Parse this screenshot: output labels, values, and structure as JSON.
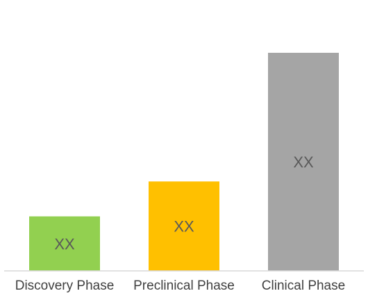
{
  "chart_data": {
    "type": "bar",
    "title": "",
    "xlabel": "",
    "ylabel": "",
    "grid": false,
    "legend": "none",
    "categories": [
      "Discovery Phase",
      "Preclinical Phase",
      "Clinical Phase"
    ],
    "values": [
      25,
      41,
      100
    ],
    "value_unit": "percent of tallest bar",
    "ylim": [
      0,
      100
    ],
    "data_labels": [
      "XX",
      "XX",
      "XX"
    ],
    "colors": [
      "#92d050",
      "#ffc000",
      "#a5a5a5"
    ],
    "axis_color": "#d9d9d9",
    "label_color": "#595959",
    "category_label_color": "#404040"
  }
}
